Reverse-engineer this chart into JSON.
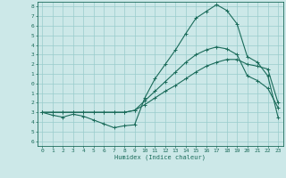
{
  "title": "",
  "xlabel": "Humidex (Indice chaleur)",
  "bg_color": "#cce8e8",
  "grid_color": "#99cccc",
  "line_color": "#1a6b5a",
  "xlim": [
    -0.5,
    23.5
  ],
  "ylim": [
    -6.5,
    8.5
  ],
  "xticks": [
    0,
    1,
    2,
    3,
    4,
    5,
    6,
    7,
    8,
    9,
    10,
    11,
    12,
    13,
    14,
    15,
    16,
    17,
    18,
    19,
    20,
    21,
    22,
    23
  ],
  "yticks": [
    8,
    7,
    6,
    5,
    4,
    3,
    2,
    1,
    0,
    -1,
    -2,
    -3,
    -4,
    -5,
    -6
  ],
  "series": [
    {
      "x": [
        0,
        1,
        2,
        3,
        4,
        5,
        6,
        7,
        8,
        9,
        10,
        11,
        12,
        13,
        14,
        15,
        16,
        17,
        18,
        19,
        20,
        21,
        22,
        23
      ],
      "y": [
        -3,
        -3.3,
        -3.5,
        -3.2,
        -3.4,
        -3.8,
        -4.2,
        -4.6,
        -4.4,
        -4.3,
        -1.5,
        0.5,
        2.0,
        3.5,
        5.2,
        6.8,
        7.5,
        8.2,
        7.6,
        6.2,
        2.8,
        2.2,
        0.8,
        -3.5
      ]
    },
    {
      "x": [
        0,
        1,
        2,
        3,
        4,
        5,
        6,
        7,
        8,
        9,
        10,
        11,
        12,
        13,
        14,
        15,
        16,
        17,
        18,
        19,
        20,
        21,
        22,
        23
      ],
      "y": [
        -3,
        -3.0,
        -3.0,
        -3.0,
        -3.0,
        -3.0,
        -3.0,
        -3.0,
        -3.0,
        -2.8,
        -1.8,
        -0.8,
        0.2,
        1.2,
        2.2,
        3.0,
        3.5,
        3.8,
        3.6,
        3.0,
        0.8,
        0.3,
        -0.5,
        -2.5
      ]
    },
    {
      "x": [
        0,
        1,
        2,
        3,
        4,
        5,
        6,
        7,
        8,
        9,
        10,
        11,
        12,
        13,
        14,
        15,
        16,
        17,
        18,
        19,
        20,
        21,
        22,
        23
      ],
      "y": [
        -3,
        -3.0,
        -3.0,
        -3.0,
        -3.0,
        -3.0,
        -3.0,
        -3.0,
        -3.0,
        -2.8,
        -2.2,
        -1.5,
        -0.8,
        -0.2,
        0.5,
        1.2,
        1.8,
        2.2,
        2.5,
        2.5,
        2.0,
        1.8,
        1.5,
        -2.0
      ]
    }
  ]
}
